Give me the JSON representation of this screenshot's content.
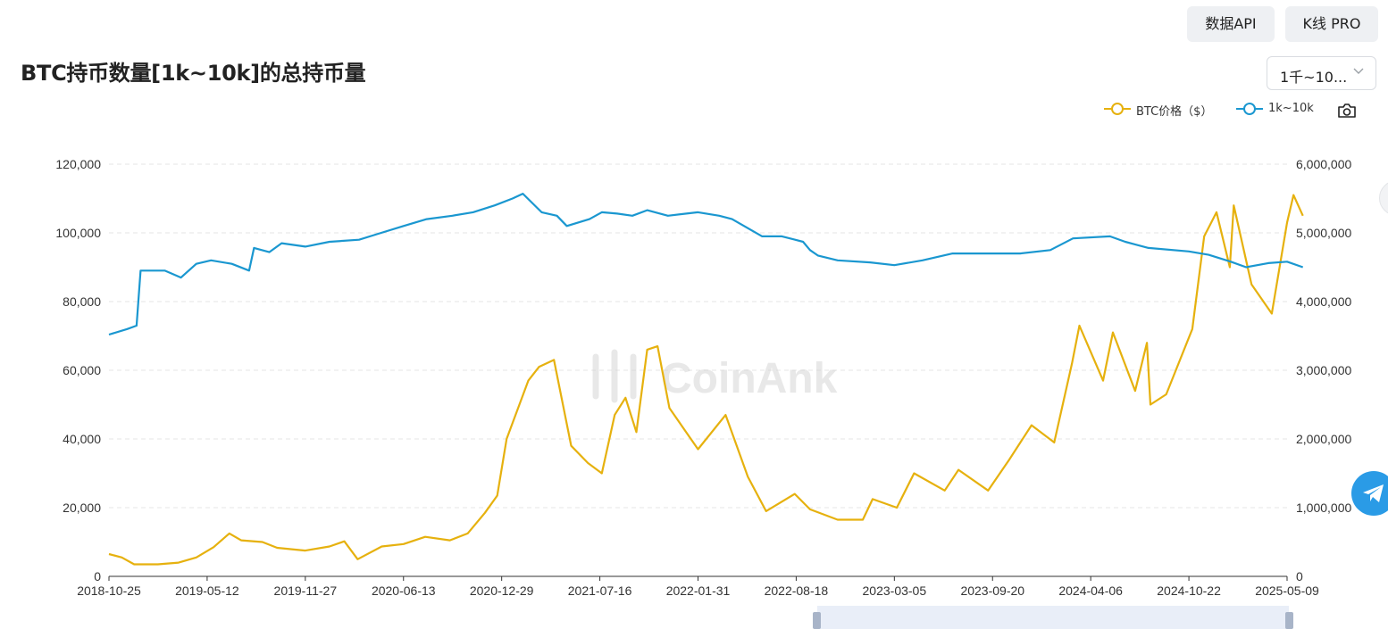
{
  "header": {
    "api_button": "数据API",
    "kline_button": "K线 PRO",
    "title": "BTC持币数量[1k~10k]的总持币量",
    "range_select": "1千~10..."
  },
  "legend": [
    {
      "label": "BTC价格（$）",
      "color": "#e6b10e",
      "icon": "circle-line-icon"
    },
    {
      "label": "1k~10k",
      "color": "#1a97d0",
      "icon": "circle-line-icon"
    }
  ],
  "icons": {
    "screenshot": "camera-icon",
    "telegram": "telegram-icon",
    "range_select": "chevron-down-icon"
  },
  "watermark": "CoinAnk",
  "chart_data": {
    "type": "line",
    "x_tick_labels": [
      "2018-10-25",
      "2019-05-12",
      "2019-11-27",
      "2020-06-13",
      "2020-12-29",
      "2021-07-16",
      "2022-01-31",
      "2022-08-18",
      "2023-03-05",
      "2023-09-20",
      "2024-04-06",
      "2024-10-22",
      "2025-05-09"
    ],
    "x_range": [
      "2018-10-25",
      "2025-05-09"
    ],
    "left_axis": {
      "ticks": [
        "0",
        "20,000",
        "40,000",
        "60,000",
        "80,000",
        "100,000",
        "120,000"
      ],
      "ylim": [
        0,
        120000
      ]
    },
    "right_axis": {
      "ticks": [
        "0",
        "1,000,000",
        "2,000,000",
        "3,000,000",
        "4,000,000",
        "5,000,000",
        "6,000,000"
      ],
      "ylim": [
        0,
        6000000
      ]
    },
    "grid": "horizontal-dashed",
    "legend_position": "top-right",
    "series": [
      {
        "name": "BTC价格（$）",
        "axis": "left",
        "color": "#e6b10e",
        "points": [
          [
            "2018-10-25",
            6500
          ],
          [
            "2018-11-20",
            5500
          ],
          [
            "2018-12-15",
            3500
          ],
          [
            "2019-02-01",
            3500
          ],
          [
            "2019-03-15",
            4000
          ],
          [
            "2019-04-20",
            5500
          ],
          [
            "2019-05-25",
            8500
          ],
          [
            "2019-06-26",
            12500
          ],
          [
            "2019-07-20",
            10500
          ],
          [
            "2019-09-01",
            10000
          ],
          [
            "2019-10-01",
            8300
          ],
          [
            "2019-11-27",
            7500
          ],
          [
            "2020-01-15",
            8700
          ],
          [
            "2020-02-14",
            10200
          ],
          [
            "2020-03-12",
            5000
          ],
          [
            "2020-04-30",
            8700
          ],
          [
            "2020-06-13",
            9400
          ],
          [
            "2020-07-27",
            11500
          ],
          [
            "2020-09-15",
            10500
          ],
          [
            "2020-10-21",
            12500
          ],
          [
            "2020-11-25",
            18500
          ],
          [
            "2020-12-20",
            23500
          ],
          [
            "2021-01-08",
            40000
          ],
          [
            "2021-02-21",
            57000
          ],
          [
            "2021-03-15",
            61000
          ],
          [
            "2021-04-14",
            63000
          ],
          [
            "2021-05-19",
            38000
          ],
          [
            "2021-06-22",
            33000
          ],
          [
            "2021-07-20",
            30000
          ],
          [
            "2021-08-15",
            47000
          ],
          [
            "2021-09-06",
            52000
          ],
          [
            "2021-09-28",
            42000
          ],
          [
            "2021-10-20",
            66000
          ],
          [
            "2021-11-10",
            67000
          ],
          [
            "2021-12-04",
            49000
          ],
          [
            "2022-01-31",
            37000
          ],
          [
            "2022-03-28",
            47000
          ],
          [
            "2022-05-12",
            29000
          ],
          [
            "2022-06-18",
            19000
          ],
          [
            "2022-08-15",
            24000
          ],
          [
            "2022-09-15",
            19500
          ],
          [
            "2022-11-10",
            16500
          ],
          [
            "2022-12-31",
            16500
          ],
          [
            "2023-01-20",
            22500
          ],
          [
            "2023-03-10",
            20000
          ],
          [
            "2023-04-14",
            30000
          ],
          [
            "2023-06-15",
            25000
          ],
          [
            "2023-07-13",
            31000
          ],
          [
            "2023-09-11",
            25000
          ],
          [
            "2023-10-24",
            34000
          ],
          [
            "2023-12-08",
            44000
          ],
          [
            "2024-01-23",
            39000
          ],
          [
            "2024-02-28",
            62000
          ],
          [
            "2024-03-14",
            73000
          ],
          [
            "2024-05-01",
            57000
          ],
          [
            "2024-05-21",
            71000
          ],
          [
            "2024-07-05",
            54000
          ],
          [
            "2024-07-29",
            68000
          ],
          [
            "2024-08-05",
            50000
          ],
          [
            "2024-09-06",
            53000
          ],
          [
            "2024-10-29",
            72000
          ],
          [
            "2024-11-22",
            99000
          ],
          [
            "2024-12-17",
            106000
          ],
          [
            "2025-01-13",
            90000
          ],
          [
            "2025-01-21",
            108000
          ],
          [
            "2025-02-26",
            85000
          ],
          [
            "2025-04-08",
            76500
          ],
          [
            "2025-05-09",
            103000
          ],
          [
            "2025-05-22",
            111000
          ],
          [
            "2025-06-10",
            105000
          ]
        ]
      },
      {
        "name": "1k~10k",
        "axis": "right",
        "color": "#1a97d0",
        "points": [
          [
            "2018-10-25",
            3520000
          ],
          [
            "2018-12-01",
            3600000
          ],
          [
            "2018-12-20",
            3650000
          ],
          [
            "2018-12-28",
            4450000
          ],
          [
            "2019-02-15",
            4450000
          ],
          [
            "2019-03-20",
            4350000
          ],
          [
            "2019-04-20",
            4550000
          ],
          [
            "2019-05-20",
            4600000
          ],
          [
            "2019-07-01",
            4550000
          ],
          [
            "2019-08-05",
            4450000
          ],
          [
            "2019-08-15",
            4780000
          ],
          [
            "2019-09-15",
            4720000
          ],
          [
            "2019-10-10",
            4850000
          ],
          [
            "2019-11-27",
            4800000
          ],
          [
            "2020-01-15",
            4870000
          ],
          [
            "2020-03-15",
            4900000
          ],
          [
            "2020-04-20",
            4980000
          ],
          [
            "2020-06-13",
            5100000
          ],
          [
            "2020-07-30",
            5200000
          ],
          [
            "2020-09-20",
            5250000
          ],
          [
            "2020-11-01",
            5300000
          ],
          [
            "2020-12-15",
            5400000
          ],
          [
            "2021-01-20",
            5500000
          ],
          [
            "2021-02-10",
            5570000
          ],
          [
            "2021-03-20",
            5300000
          ],
          [
            "2021-04-20",
            5250000
          ],
          [
            "2021-05-10",
            5100000
          ],
          [
            "2021-06-25",
            5200000
          ],
          [
            "2021-07-20",
            5300000
          ],
          [
            "2021-08-20",
            5280000
          ],
          [
            "2021-09-20",
            5250000
          ],
          [
            "2021-10-20",
            5330000
          ],
          [
            "2021-12-01",
            5250000
          ],
          [
            "2022-01-31",
            5300000
          ],
          [
            "2022-03-15",
            5250000
          ],
          [
            "2022-04-10",
            5200000
          ],
          [
            "2022-06-10",
            4950000
          ],
          [
            "2022-07-20",
            4950000
          ],
          [
            "2022-09-01",
            4870000
          ],
          [
            "2022-09-15",
            4750000
          ],
          [
            "2022-10-01",
            4670000
          ],
          [
            "2022-11-10",
            4600000
          ],
          [
            "2023-01-15",
            4570000
          ],
          [
            "2023-03-05",
            4530000
          ],
          [
            "2023-05-01",
            4600000
          ],
          [
            "2023-07-01",
            4700000
          ],
          [
            "2023-09-20",
            4700000
          ],
          [
            "2023-11-15",
            4700000
          ],
          [
            "2024-01-15",
            4750000
          ],
          [
            "2024-03-01",
            4920000
          ],
          [
            "2024-05-15",
            4950000
          ],
          [
            "2024-06-15",
            4870000
          ],
          [
            "2024-08-01",
            4780000
          ],
          [
            "2024-10-22",
            4730000
          ],
          [
            "2024-12-01",
            4680000
          ],
          [
            "2025-01-15",
            4580000
          ],
          [
            "2025-02-15",
            4500000
          ],
          [
            "2025-04-01",
            4560000
          ],
          [
            "2025-05-09",
            4580000
          ],
          [
            "2025-06-10",
            4500000
          ]
        ]
      }
    ]
  }
}
